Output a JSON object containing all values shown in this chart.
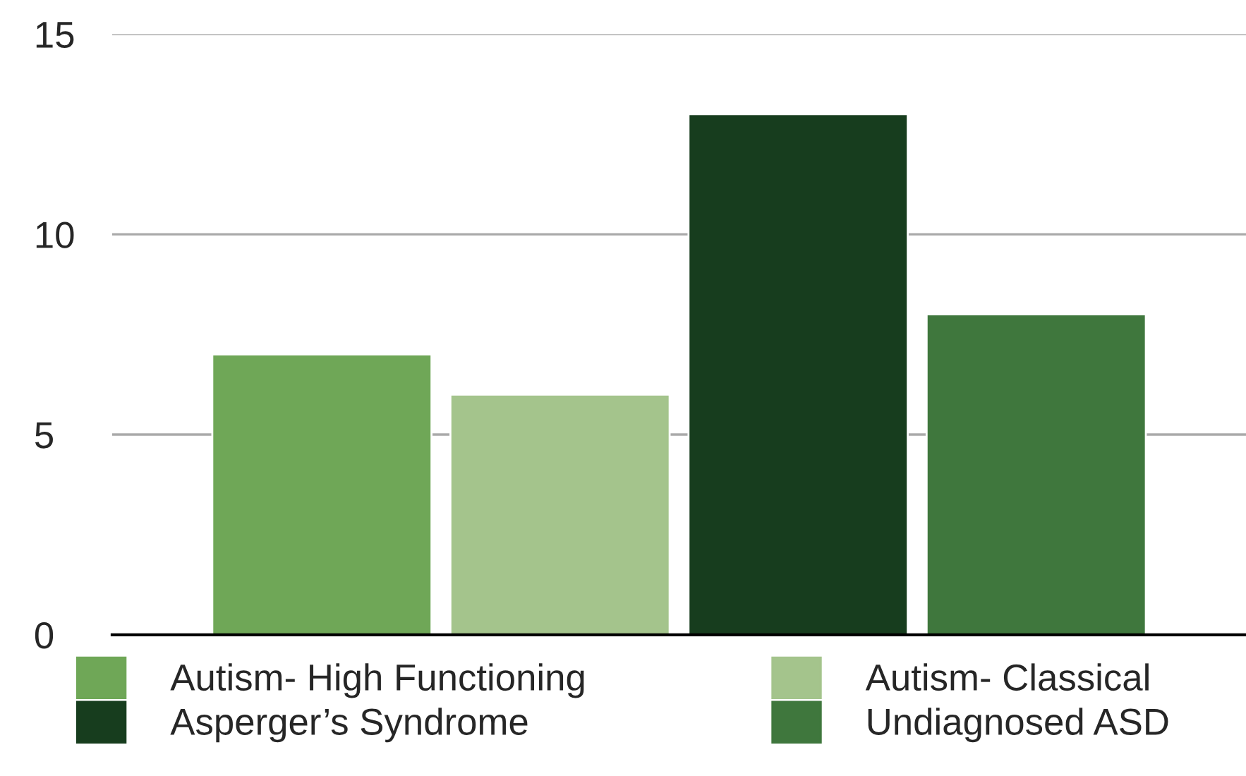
{
  "chart_data": {
    "type": "bar",
    "categories": [
      null
    ],
    "series": [
      {
        "name": "Autism- High Functioning",
        "color": "#6fa757",
        "values": [
          7
        ]
      },
      {
        "name": "Autism- Classical",
        "color": "#a4c48c",
        "values": [
          6
        ]
      },
      {
        "name": "Asperger’s Syndrome",
        "color": "#173d1e",
        "values": [
          13
        ]
      },
      {
        "name": "Undiagnosed ASD",
        "color": "#3f773d",
        "values": [
          8
        ]
      }
    ],
    "ylim": [
      0,
      15
    ],
    "yticks": [
      0,
      5,
      10,
      15
    ],
    "grid": "y",
    "legend": "bottom"
  }
}
